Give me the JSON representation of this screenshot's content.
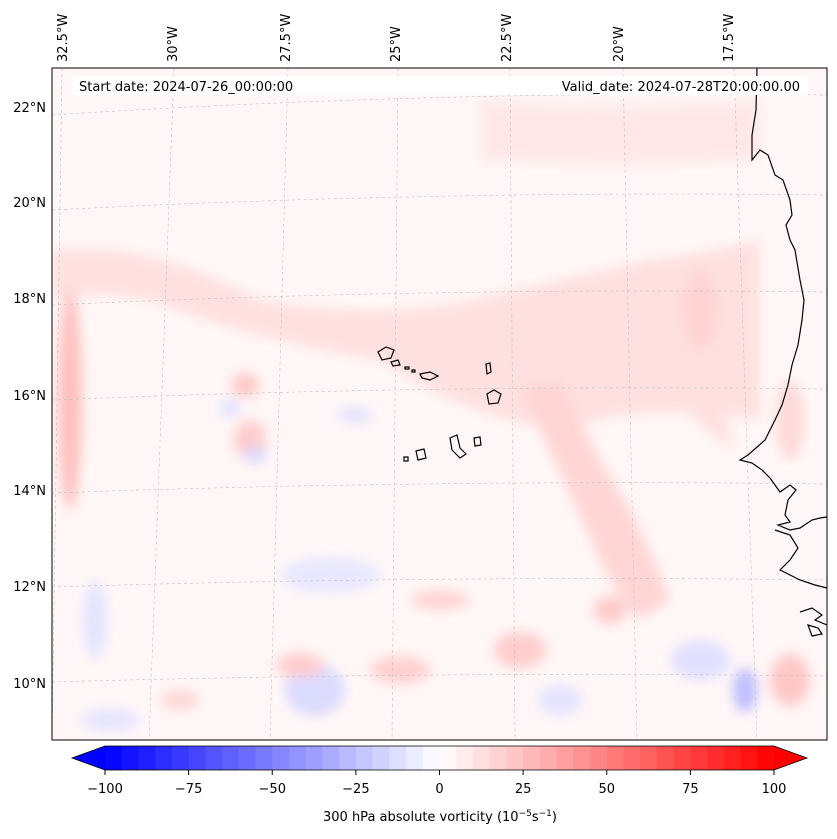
{
  "map": {
    "title_start": "Start date: 2024-07-26_00:00:00",
    "title_valid": "Valid_date: 2024-07-28T20:00:00.00",
    "lon_labels": [
      "32.5°W",
      "30°W",
      "27.5°W",
      "25°W",
      "22.5°W",
      "20°W",
      "17.5°W"
    ],
    "lat_labels": [
      "22°N",
      "20°N",
      "18°N",
      "16°N",
      "14°N",
      "12°N",
      "10°N"
    ],
    "colorbar": {
      "ticks": [
        "−100",
        "−75",
        "−50",
        "−25",
        "0",
        "25",
        "50",
        "75",
        "100"
      ],
      "label": "300 hPa absolute vorticity (10",
      "label_sup1": "−5",
      "label_mid": "s",
      "label_sup2": "−1",
      "label_end": ")",
      "min": -100,
      "max": 100,
      "step": 5,
      "low_color": "#0000ff",
      "high_color": "#ff0000"
    }
  }
}
